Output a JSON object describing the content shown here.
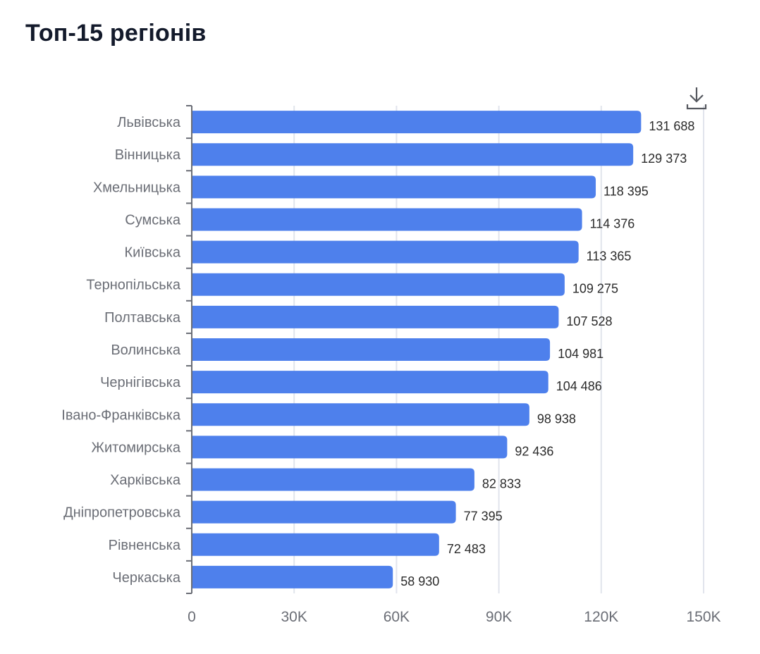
{
  "page": {
    "title": "Топ-15 регіонів",
    "download_icon": "download-icon"
  },
  "colors": {
    "bar": "#4e80ec",
    "grid": "#e1e4ec",
    "axis": "#6b6e76",
    "title": "#131a2b"
  },
  "chart_data": {
    "type": "bar",
    "orientation": "horizontal",
    "title": "Топ-15 регіонів",
    "xlabel": "",
    "ylabel": "",
    "xlim": [
      0,
      150000
    ],
    "grid": true,
    "categories": [
      "Львівська",
      "Вінницька",
      "Хмельницька",
      "Сумська",
      "Київська",
      "Тернопільська",
      "Полтавська",
      "Волинська",
      "Чернігівська",
      "Івано-Франківська",
      "Житомирська",
      "Харківська",
      "Дніпропетровська",
      "Рівненська",
      "Черкаська"
    ],
    "values": [
      131688,
      129373,
      118395,
      114376,
      113365,
      109275,
      107528,
      104981,
      104486,
      98938,
      92436,
      82833,
      77395,
      72483,
      58930
    ],
    "value_labels": [
      "131 688",
      "129 373",
      "118 395",
      "114 376",
      "113 365",
      "109 275",
      "107 528",
      "104 981",
      "104 486",
      "98 938",
      "92 436",
      "82 833",
      "77 395",
      "72 483",
      "58 930"
    ],
    "x_ticks": [
      0,
      30000,
      60000,
      90000,
      120000,
      150000
    ],
    "x_tick_labels": [
      "0",
      "30K",
      "60K",
      "90K",
      "120K",
      "150K"
    ]
  }
}
